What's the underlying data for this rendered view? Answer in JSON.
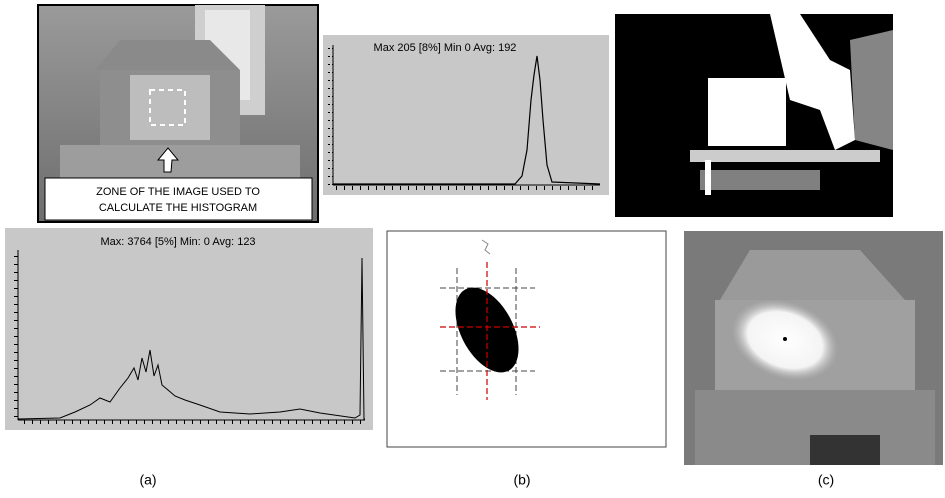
{
  "photo": {
    "annotation": [
      "ZONE OF THE IMAGE USED TO",
      "CALCULATE THE HISTOGRAM"
    ]
  },
  "histogram_top": {
    "stats": "Max 205 [8%] Min 0 Avg: 192"
  },
  "histogram_bottom": {
    "stats": "Max: 3764 [5%] Min: 0 Avg: 123"
  },
  "labels": [
    "(a)",
    "(b)",
    "(c)"
  ]
}
